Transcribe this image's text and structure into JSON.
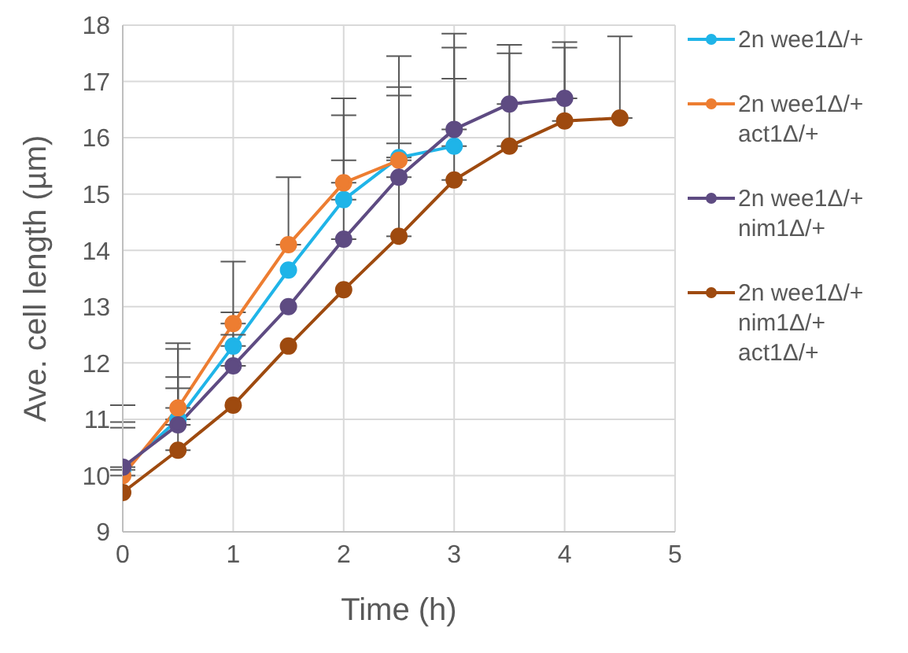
{
  "chart_data": {
    "type": "line",
    "xlabel": "Time (h)",
    "ylabel": "Ave. cell length (µm)",
    "x": [
      0,
      0.5,
      1,
      1.5,
      2,
      2.5,
      3,
      3.5,
      4,
      4.5
    ],
    "xlim": [
      0,
      5
    ],
    "xticks": [
      0,
      1,
      2,
      3,
      4,
      5
    ],
    "ylim": [
      9,
      18
    ],
    "yticks": [
      9,
      10,
      11,
      12,
      13,
      14,
      15,
      16,
      17,
      18
    ],
    "grid": true,
    "legend": "right",
    "marker": "circle",
    "line_style": "solid",
    "series": [
      {
        "name": "2n wee1Δ/+",
        "color": "#1fb4e8",
        "values": [
          10.1,
          11.0,
          12.3,
          13.65,
          14.9,
          15.65,
          15.85,
          null,
          null,
          null
        ],
        "errors": [
          [
            10.1,
            11.25
          ],
          [
            11.0,
            12.25
          ],
          [
            12.3,
            12.9
          ],
          null,
          [
            14.9,
            16.4
          ],
          [
            15.65,
            17.45
          ],
          [
            15.85,
            17.85
          ],
          null,
          null,
          null
        ]
      },
      {
        "name": "2n wee1Δ/+ act1Δ/+",
        "color": "#ed7d31",
        "values": [
          10.0,
          11.2,
          12.7,
          14.1,
          15.2,
          15.6,
          null,
          null,
          null,
          null
        ],
        "errors": [
          [
            10.0,
            10.95
          ],
          [
            11.2,
            12.35
          ],
          [
            12.7,
            13.8
          ],
          [
            14.1,
            15.3
          ],
          [
            15.2,
            16.7
          ],
          [
            15.6,
            16.9
          ],
          null,
          null,
          null,
          null
        ]
      },
      {
        "name": "2n wee1Δ/+ nim1Δ/+",
        "color": "#5e4b82",
        "values": [
          10.15,
          10.9,
          11.95,
          13.0,
          14.2,
          15.3,
          16.15,
          16.6,
          16.7,
          null
        ],
        "errors": [
          [
            10.15,
            10.85
          ],
          [
            10.9,
            11.75
          ],
          [
            11.95,
            12.5
          ],
          null,
          [
            14.2,
            15.6
          ],
          [
            15.3,
            16.75
          ],
          [
            16.15,
            17.6
          ],
          [
            16.6,
            17.65
          ],
          [
            16.7,
            17.7
          ],
          null
        ]
      },
      {
        "name": "2n wee1Δ/+ nim1Δ/+ act1Δ/+",
        "color": "#9e4a0f",
        "values": [
          9.7,
          10.45,
          11.25,
          12.3,
          13.3,
          14.25,
          15.25,
          15.85,
          16.3,
          16.35
        ],
        "errors": [
          null,
          [
            10.45,
            11.55
          ],
          null,
          null,
          null,
          [
            14.25,
            15.9
          ],
          [
            15.25,
            17.05
          ],
          [
            15.85,
            17.5
          ],
          [
            16.3,
            17.6
          ],
          [
            16.35,
            17.8
          ]
        ]
      }
    ]
  }
}
